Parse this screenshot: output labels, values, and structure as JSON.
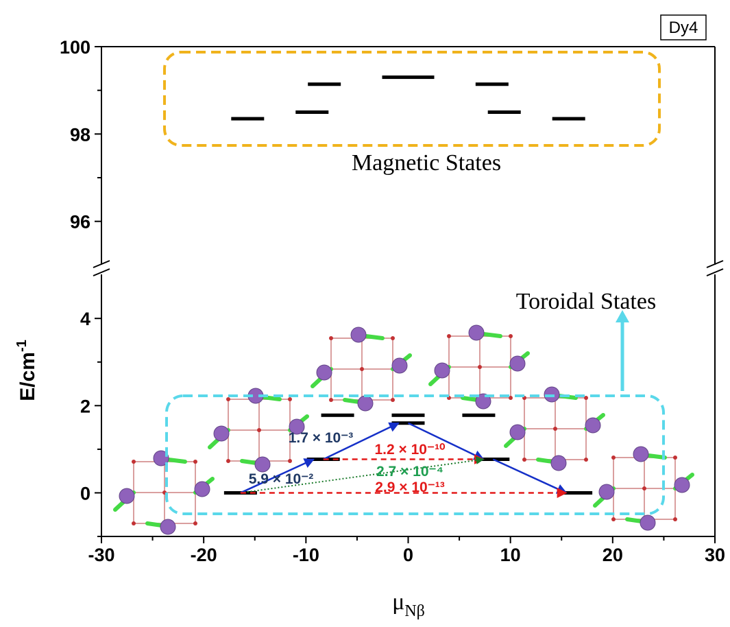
{
  "chart_data": {
    "type": "levels",
    "label_box": "Dy4",
    "ylabel": {
      "text": "E/cm",
      "superscript": "-1"
    },
    "xlabel": {
      "text": "μ",
      "subscript": "Nβ"
    },
    "xlim": [
      -30,
      30
    ],
    "xticks": [
      -30,
      -20,
      -10,
      0,
      10,
      20,
      30
    ],
    "xminor": [
      -25,
      -15,
      -5,
      5,
      15,
      25
    ],
    "y_segments": [
      {
        "ylim": [
          95.1,
          100
        ],
        "yticks": [
          96,
          98,
          100
        ],
        "yminor": [
          97,
          99
        ]
      },
      {
        "ylim": [
          -1,
          4.9
        ],
        "yticks": [
          0,
          2,
          4
        ],
        "yminor": [
          -1,
          1,
          3
        ]
      }
    ],
    "groups": [
      {
        "label": "Magnetic States",
        "box_color": "#f0b31c",
        "x": [
          -15.7,
          -9.4,
          -8.2,
          0,
          8.2,
          9.4,
          15.7
        ],
        "values": [
          98.35,
          98.5,
          99.14,
          99.3,
          99.14,
          98.5,
          98.35
        ]
      },
      {
        "label": "Toroidal States",
        "box_color": "#5ad8ea",
        "x": [
          -16.4,
          -8.3,
          -6.9,
          0,
          0,
          6.9,
          8.3,
          16.4
        ],
        "values": [
          0,
          0.77,
          1.78,
          1.78,
          1.6,
          1.78,
          0.77,
          0
        ]
      }
    ],
    "transitions": {
      "from": [
        0,
        1,
        4,
        6,
        1,
        0,
        0
      ],
      "to": [
        1,
        4,
        6,
        7,
        6,
        6,
        7
      ],
      "values": [
        0.059,
        0.0017,
        null,
        null,
        1.2e-10,
        0.00027,
        2.9e-13
      ],
      "value_labels": [
        "5.9 × 10⁻²",
        "1.7 × 10⁻³",
        null,
        null,
        "1.2 × 10⁻¹⁰",
        "2.7 × 10⁻⁴",
        "2.9 × 10⁻¹³"
      ],
      "colors": [
        "#1530c8",
        "#1530c8",
        "#1530c8",
        "#1530c8",
        "#e31a1a",
        "#1a7a2a",
        "#e31a1a"
      ],
      "label_colors": [
        "#1f3864",
        "#1f3864",
        null,
        null,
        "#e31a1a",
        "#1e9e50",
        "#e31a1a"
      ],
      "styles": [
        "solid",
        "solid",
        "solid",
        "solid",
        "dashed",
        "dotted",
        "dashed"
      ]
    }
  }
}
